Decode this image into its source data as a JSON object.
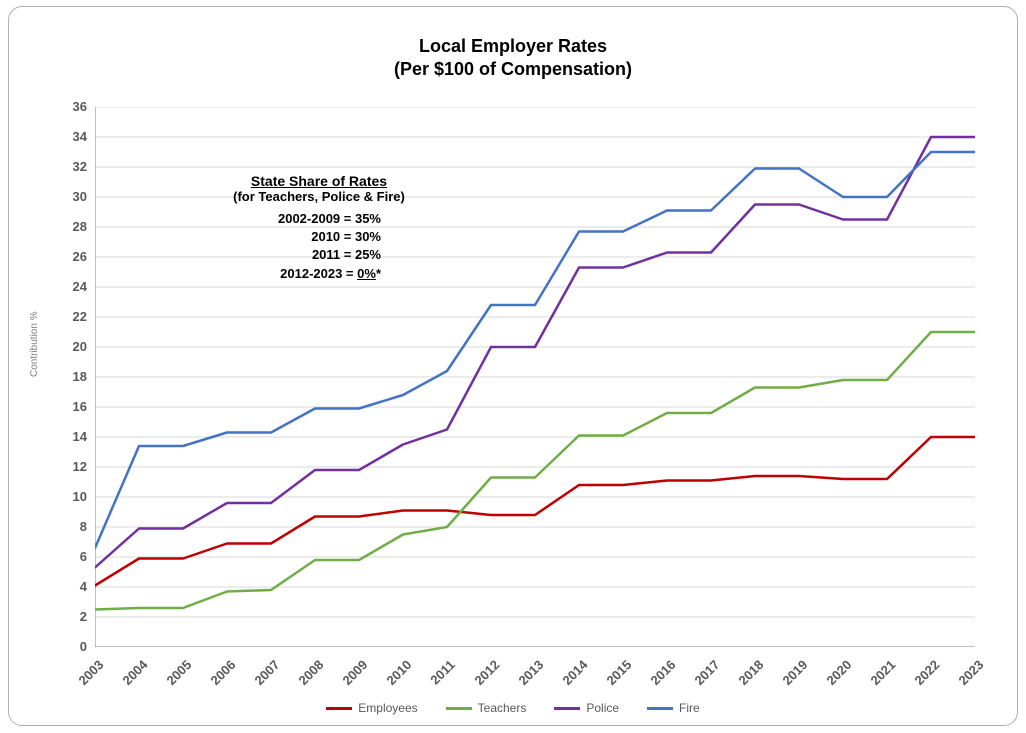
{
  "chart": {
    "type": "line",
    "title_line1": "Local Employer Rates",
    "title_line2": "(Per $100 of Compensation)",
    "title_fontsize": 18,
    "background_color": "#ffffff",
    "grid_color": "#d9d9d9",
    "axis_color": "#808080",
    "tick_label_color": "#595959",
    "tick_fontsize": 13,
    "line_width": 2.5,
    "yaxis": {
      "title": "Contribution %",
      "min": 0,
      "max": 36,
      "tick_step": 2,
      "ticks": [
        0,
        2,
        4,
        6,
        8,
        10,
        12,
        14,
        16,
        18,
        20,
        22,
        24,
        26,
        28,
        30,
        32,
        34,
        36
      ]
    },
    "xaxis": {
      "categories": [
        "2003",
        "2004",
        "2005",
        "2006",
        "2007",
        "2008",
        "2009",
        "2010",
        "2011",
        "2012",
        "2013",
        "2014",
        "2015",
        "2016",
        "2017",
        "2018",
        "2019",
        "2020",
        "2021",
        "2022",
        "2023"
      ]
    },
    "series": [
      {
        "name": "Employees",
        "color": "#c00000",
        "values": [
          4.1,
          5.9,
          5.9,
          6.9,
          6.9,
          8.7,
          8.7,
          9.1,
          9.1,
          8.8,
          8.8,
          10.8,
          10.8,
          11.1,
          11.1,
          11.4,
          11.4,
          11.2,
          11.2,
          14.0,
          14.0
        ]
      },
      {
        "name": "Teachers",
        "color": "#70ad47",
        "values": [
          2.5,
          2.6,
          2.6,
          3.7,
          3.8,
          5.8,
          5.8,
          7.5,
          8.0,
          11.3,
          11.3,
          14.1,
          14.1,
          15.6,
          15.6,
          17.3,
          17.3,
          17.8,
          17.8,
          21.0,
          21.0
        ]
      },
      {
        "name": "Police",
        "color": "#7030a0",
        "values": [
          5.3,
          7.9,
          7.9,
          9.6,
          9.6,
          11.8,
          11.8,
          13.5,
          14.5,
          20.0,
          20.0,
          25.3,
          25.3,
          26.3,
          26.3,
          29.5,
          29.5,
          28.5,
          28.5,
          34.0,
          34.0
        ]
      },
      {
        "name": "Fire",
        "color": "#4472c4",
        "values": [
          6.6,
          13.4,
          13.4,
          14.3,
          14.3,
          15.9,
          15.9,
          16.8,
          18.4,
          22.8,
          22.8,
          27.7,
          27.7,
          29.1,
          29.1,
          31.9,
          31.9,
          30.0,
          30.0,
          33.0,
          33.0
        ]
      }
    ],
    "annotation": {
      "title": "State Share of Rates",
      "subtitle": "(for Teachers, Police & Fire)",
      "rows": [
        {
          "period": "2002-2009",
          "value": "35%",
          "underline": false
        },
        {
          "period": "2010",
          "value": "30%",
          "underline": false
        },
        {
          "period": "2011",
          "value": "25%",
          "underline": false
        },
        {
          "period": "2012-2023",
          "value": "0%*",
          "underline": true
        }
      ],
      "fontsize": 13
    }
  }
}
